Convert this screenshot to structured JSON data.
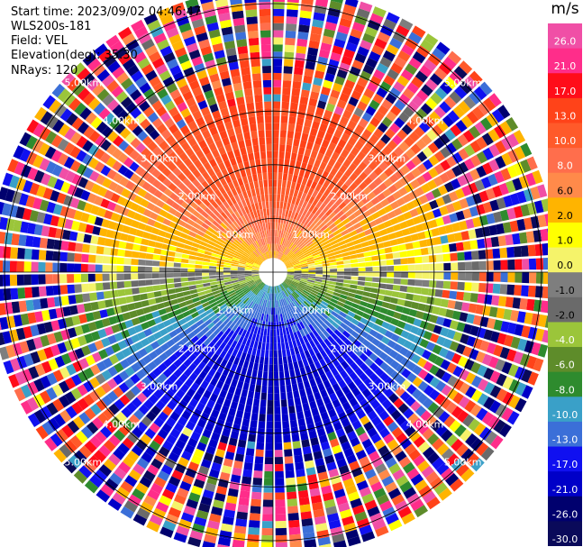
{
  "header": {
    "start_time_label": "Start time:",
    "start_time": "2023/09/02 04:46:47",
    "instrument": "WLS200s-181",
    "field_label": "Field:",
    "field": "VEL",
    "elevation_label": "Elevation(deg):",
    "elevation": "35.30",
    "nrays_label": "NRays:",
    "nrays": "120"
  },
  "chart_data": {
    "type": "heatmap",
    "projection": "polar-ppi",
    "field": "VEL",
    "units": "m/s",
    "n_rays": 120,
    "range_rings_km": [
      1.0,
      2.0,
      3.0,
      4.0,
      5.0
    ],
    "ring_labels": [
      "1.00km",
      "2.00km",
      "3.00km",
      "4.00km",
      "5.00km"
    ],
    "max_range_km": 5.3,
    "gates_per_ray": 40,
    "grid": true,
    "colorbar": {
      "title": "m/s",
      "tick_labels": [
        "26.0",
        "21.0",
        "17.0",
        "13.0",
        "10.0",
        "8.0",
        "6.0",
        "2.0",
        "1.0",
        "0.0",
        "-1.0",
        "-2.0",
        "-4.0",
        "-6.0",
        "-8.0",
        "-10.0",
        "-13.0",
        "-17.0",
        "-21.0",
        "-26.0",
        "-30.0"
      ],
      "bins": [
        {
          "lo": 26,
          "hi": 30,
          "color": "#f04fa6"
        },
        {
          "lo": 21,
          "hi": 26,
          "color": "#ff2d8a"
        },
        {
          "lo": 17,
          "hi": 21,
          "color": "#ff0d1a"
        },
        {
          "lo": 13,
          "hi": 17,
          "color": "#ff4319"
        },
        {
          "lo": 10,
          "hi": 13,
          "color": "#ff5a2a"
        },
        {
          "lo": 8,
          "hi": 10,
          "color": "#ff6e4c"
        },
        {
          "lo": 6,
          "hi": 8,
          "color": "#ff8a4a"
        },
        {
          "lo": 2,
          "hi": 6,
          "color": "#ffb400"
        },
        {
          "lo": 1,
          "hi": 2,
          "color": "#ffff00"
        },
        {
          "lo": 0,
          "hi": 1,
          "color": "#f5f36a"
        },
        {
          "lo": -1,
          "hi": 0,
          "color": "#7e7e7e"
        },
        {
          "lo": -2,
          "hi": -1,
          "color": "#6a6a6a"
        },
        {
          "lo": -4,
          "hi": -2,
          "color": "#9bc53a"
        },
        {
          "lo": -6,
          "hi": -4,
          "color": "#5e8c2a"
        },
        {
          "lo": -8,
          "hi": -6,
          "color": "#2e8b2e"
        },
        {
          "lo": -10,
          "hi": -8,
          "color": "#3aa0c8"
        },
        {
          "lo": -13,
          "hi": -10,
          "color": "#3b6fd8"
        },
        {
          "lo": -17,
          "hi": -13,
          "color": "#1010f0"
        },
        {
          "lo": -21,
          "hi": -17,
          "color": "#0000c8"
        },
        {
          "lo": -26,
          "hi": -21,
          "color": "#00006e"
        },
        {
          "lo": -30,
          "hi": -26,
          "color": "#0a0a5a"
        }
      ]
    },
    "description_values": {
      "pattern": "radial velocity dipole: positive (receding) toward north, negative (approaching) toward south, zero line oriented roughly east-west; noisy aliased values beyond ~3.5 km",
      "max_positive": 17,
      "max_negative": -21
    }
  }
}
